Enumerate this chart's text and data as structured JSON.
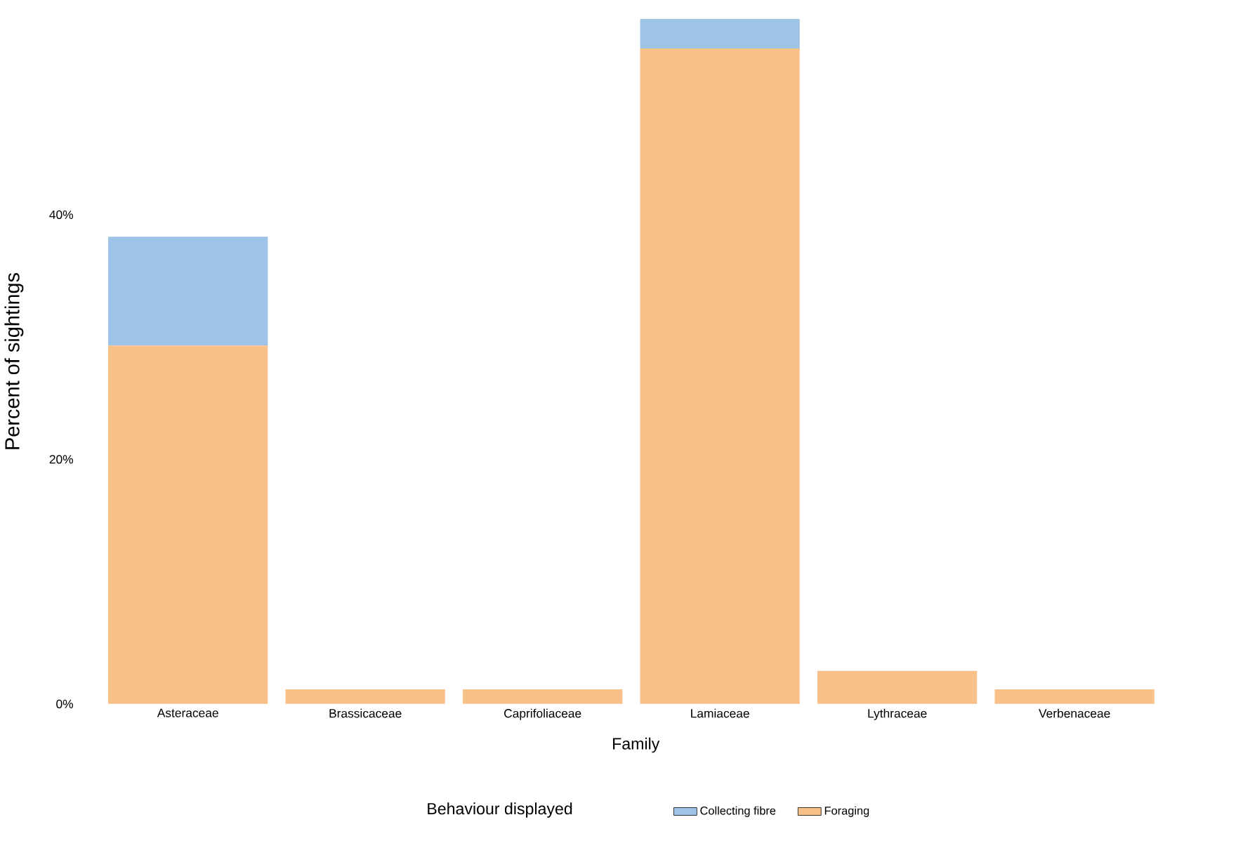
{
  "chart_data": {
    "type": "bar",
    "stacked": true,
    "categories": [
      "Asteraceae",
      "Brassicaceae",
      "Caprifoliaceae",
      "Lamiaceae",
      "Lythraceae",
      "Verbenaceae"
    ],
    "series": [
      {
        "name": "Foraging",
        "color": "#f8c18a",
        "values": [
          29.3,
          1.2,
          1.2,
          53.6,
          2.7,
          1.2
        ]
      },
      {
        "name": "Collecting fibre",
        "color": "#9dc3e6",
        "values": [
          8.9,
          null,
          null,
          2.4,
          null,
          null
        ]
      }
    ],
    "xlabel": "Family",
    "ylabel": "Percent of sightings",
    "legend_title": "Behaviour displayed",
    "ylim": [
      0,
      56
    ],
    "yticks": [
      {
        "value": 0,
        "label": "0%"
      },
      {
        "value": 20,
        "label": "20%"
      },
      {
        "value": 40,
        "label": "40%"
      }
    ],
    "grid": false,
    "legend": "bottom"
  }
}
